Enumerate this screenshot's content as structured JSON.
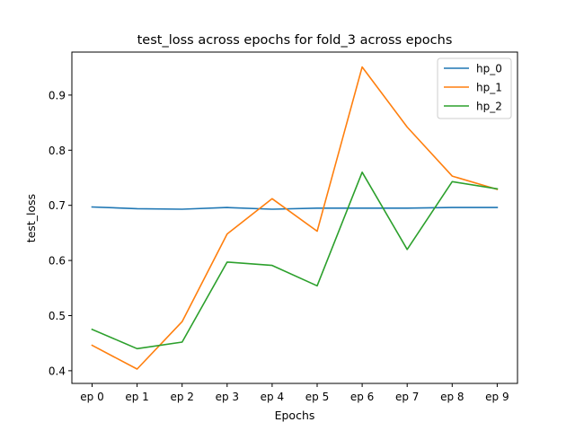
{
  "chart_data": {
    "type": "line",
    "title": "test_loss across epochs for fold_3 across epochs",
    "xlabel": "Epochs",
    "ylabel": "test_loss",
    "categories": [
      "ep 0",
      "ep 1",
      "ep 2",
      "ep 3",
      "ep 4",
      "ep 5",
      "ep 6",
      "ep 7",
      "ep 8",
      "ep 9"
    ],
    "ylim": [
      0.377,
      0.978
    ],
    "yticks": [
      0.4,
      0.5,
      0.6,
      0.7,
      0.8,
      0.9
    ],
    "ytick_labels": [
      "0.4",
      "0.5",
      "0.6",
      "0.7",
      "0.8",
      "0.9"
    ],
    "grid": false,
    "legend_position": "top-right",
    "series": [
      {
        "name": "hp_0",
        "color": "#1f77b4",
        "values": [
          0.697,
          0.694,
          0.693,
          0.696,
          0.693,
          0.695,
          0.695,
          0.695,
          0.696,
          0.696
        ]
      },
      {
        "name": "hp_1",
        "color": "#ff7f0e",
        "values": [
          0.446,
          0.403,
          0.489,
          0.648,
          0.712,
          0.653,
          0.951,
          0.842,
          0.753,
          0.729
        ]
      },
      {
        "name": "hp_2",
        "color": "#2ca02c",
        "values": [
          0.475,
          0.44,
          0.452,
          0.597,
          0.591,
          0.554,
          0.76,
          0.62,
          0.743,
          0.73
        ]
      }
    ]
  }
}
